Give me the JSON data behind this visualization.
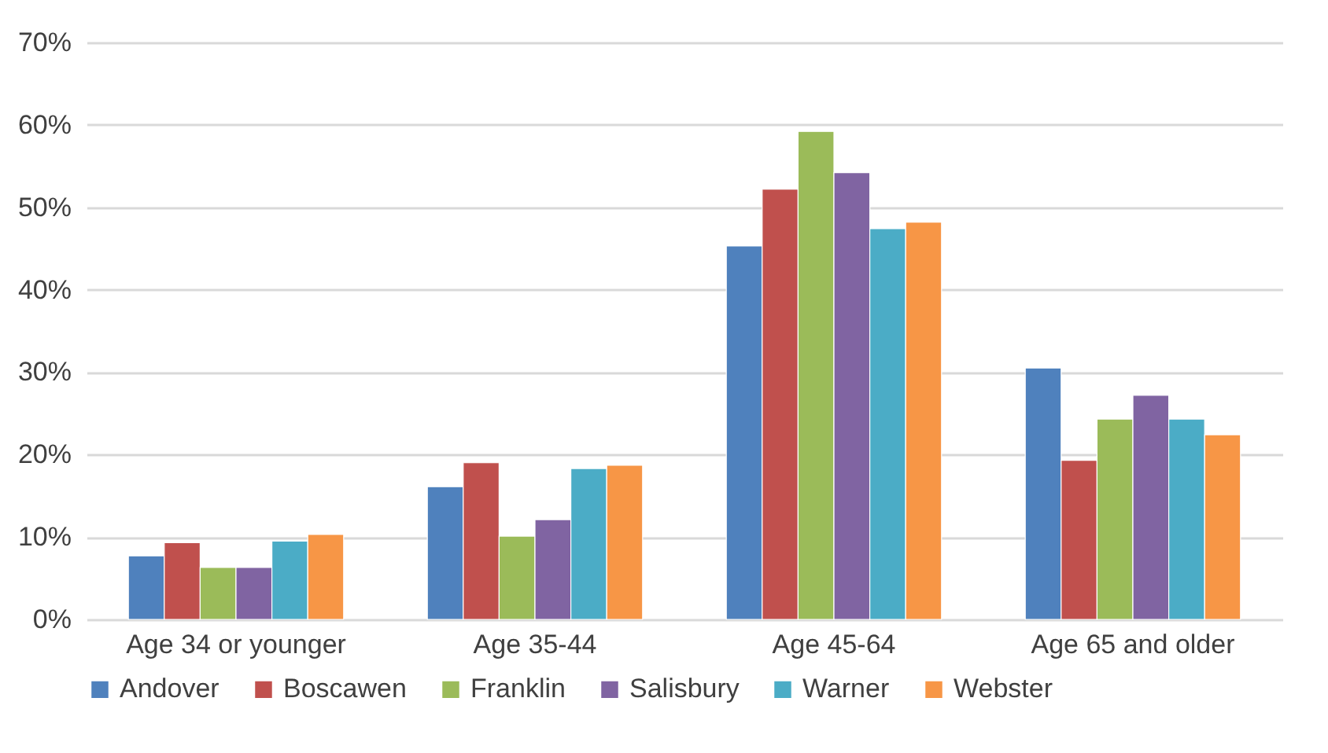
{
  "chart_data": {
    "type": "bar",
    "categories": [
      "Age 34 or younger",
      "Age 35-44",
      "Age 45-64",
      "Age 65 and older"
    ],
    "series": [
      {
        "name": "Andover",
        "color": "#4f81bd",
        "values": [
          7.7,
          16.1,
          45.3,
          30.5
        ]
      },
      {
        "name": "Boscawen",
        "color": "#c0504d",
        "values": [
          9.3,
          19.0,
          52.2,
          19.3
        ]
      },
      {
        "name": "Franklin",
        "color": "#9bbb59",
        "values": [
          6.3,
          10.1,
          59.2,
          24.3
        ]
      },
      {
        "name": "Salisbury",
        "color": "#8064a2",
        "values": [
          6.3,
          12.1,
          54.2,
          27.2
        ]
      },
      {
        "name": "Warner",
        "color": "#4bacc6",
        "values": [
          9.5,
          18.3,
          47.4,
          24.3
        ]
      },
      {
        "name": "Webster",
        "color": "#f79646",
        "values": [
          10.3,
          18.7,
          48.2,
          22.4
        ]
      }
    ],
    "ylim": [
      0,
      70
    ],
    "yticks": [
      {
        "value": 0,
        "label": "0%"
      },
      {
        "value": 10,
        "label": "10%"
      },
      {
        "value": 20,
        "label": "20%"
      },
      {
        "value": 30,
        "label": "30%"
      },
      {
        "value": 40,
        "label": "40%"
      },
      {
        "value": 50,
        "label": "50%"
      },
      {
        "value": 60,
        "label": "60%"
      },
      {
        "value": 70,
        "label": "70%"
      }
    ],
    "grid": "y",
    "legend": "bottom"
  }
}
